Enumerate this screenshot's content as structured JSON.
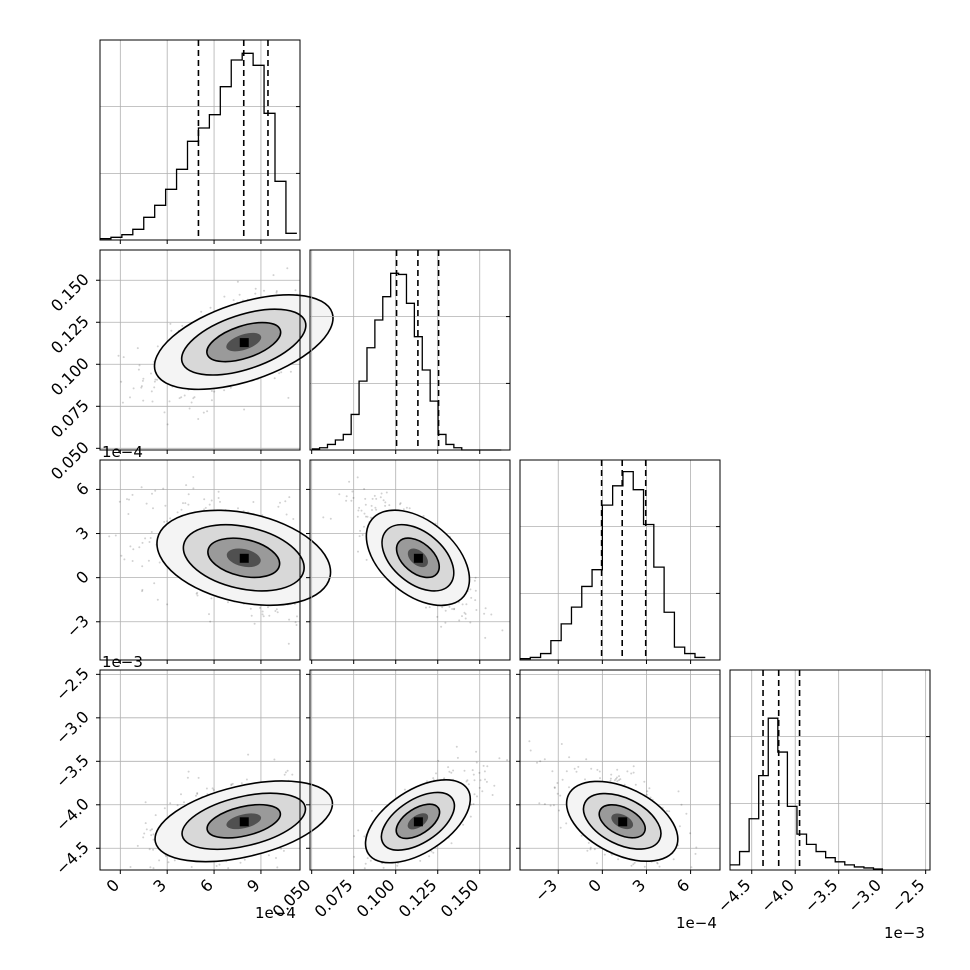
{
  "chart_data": {
    "type": "corner",
    "parameters": [
      {
        "range": [
          -1.3,
          11.5
        ],
        "ticks": [
          0,
          3,
          6,
          9
        ],
        "tick_labels": [
          "0",
          "3",
          "6",
          "9"
        ],
        "offset_label": "1e−4",
        "log": false
      },
      {
        "range": [
          0.049,
          0.168
        ],
        "ticks": [
          0.05,
          0.075,
          0.1,
          0.125,
          0.15
        ],
        "tick_labels": [
          "0.050",
          "0.075",
          "0.100",
          "0.125",
          "0.150"
        ],
        "offset_label": "",
        "log": false
      },
      {
        "range": [
          -5.6,
          8.0
        ],
        "ticks": [
          -3,
          0,
          3,
          6
        ],
        "tick_labels": [
          "−3",
          "0",
          "3",
          "6"
        ],
        "offset_label": "1e−4",
        "log": false
      },
      {
        "range": [
          -4.75,
          -2.45
        ],
        "ticks": [
          -4.5,
          -4.0,
          -3.5,
          -3.0,
          -2.5
        ],
        "tick_labels": [
          "−4.5",
          "−4.0",
          "−3.5",
          "−3.0",
          "−2.5"
        ],
        "offset_label": "1e−3",
        "log": false
      }
    ],
    "diagonal": [
      {
        "bin_edges": [
          -1.3,
          -0.6,
          0.1,
          0.8,
          1.5,
          2.2,
          2.9,
          3.6,
          4.3,
          5.0,
          5.7,
          6.4,
          7.1,
          7.8,
          8.5,
          9.2,
          9.9,
          10.6,
          11.3
        ],
        "counts": [
          1,
          2,
          4,
          8,
          17,
          26,
          38,
          53,
          74,
          84,
          94,
          115,
          135,
          140,
          131,
          95,
          44,
          5
        ],
        "ylim": [
          0,
          150
        ],
        "quantiles": [
          5.0,
          7.9,
          9.45
        ]
      },
      {
        "bin_edges": [
          0.05,
          0.0547,
          0.0594,
          0.0641,
          0.0688,
          0.0735,
          0.0782,
          0.0829,
          0.0876,
          0.0923,
          0.097,
          0.1017,
          0.1064,
          0.1111,
          0.1158,
          0.1205,
          0.1252,
          0.1299,
          0.1346,
          0.1393,
          0.144,
          0.1487,
          0.1534,
          0.1581,
          0.1628
        ],
        "counts": [
          1,
          2,
          5,
          9,
          14,
          32,
          62,
          92,
          117,
          138,
          159,
          158,
          132,
          102,
          72,
          44,
          14,
          5,
          2,
          0,
          0,
          0,
          0,
          0
        ],
        "ylim": [
          0,
          180
        ],
        "quantiles": [
          0.1005,
          0.1132,
          0.1255
        ]
      },
      {
        "bin_edges": [
          -5.6,
          -4.9,
          -4.2,
          -3.5,
          -2.8,
          -2.1,
          -1.4,
          -0.7,
          0.0,
          0.7,
          1.4,
          2.1,
          2.8,
          3.5,
          4.2,
          4.9,
          5.6,
          6.3,
          7.0
        ],
        "counts": [
          1,
          2,
          5,
          15,
          28,
          41,
          57,
          70,
          120,
          135,
          146,
          132,
          105,
          72,
          37,
          10,
          5,
          2
        ],
        "ylim": [
          0,
          155
        ],
        "quantiles": [
          -0.05,
          1.35,
          2.95
        ]
      },
      {
        "bin_edges": [
          -4.75,
          -4.64,
          -4.53,
          -4.42,
          -4.31,
          -4.2,
          -4.09,
          -3.98,
          -3.87,
          -3.76,
          -3.65,
          -3.54,
          -3.43,
          -3.32,
          -3.21,
          -3.1,
          -2.99
        ],
        "counts": [
          5,
          18,
          50,
          92,
          148,
          115,
          62,
          35,
          25,
          18,
          12,
          8,
          5,
          3,
          2,
          1
        ],
        "ylim": [
          0,
          195
        ],
        "quantiles": [
          -4.37,
          -4.19,
          -3.95
        ]
      }
    ]
  }
}
